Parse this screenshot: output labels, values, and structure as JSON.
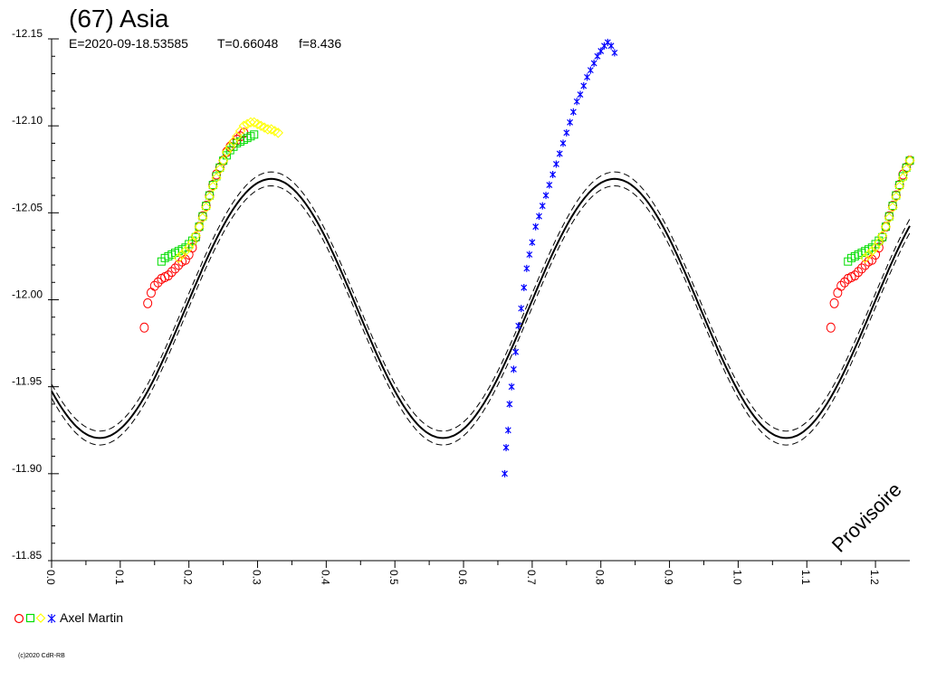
{
  "header": {
    "title": "(67) Asia",
    "epoch": "E=2020-09-18.53585",
    "period": "T=0.66048",
    "frequency": "f=8.436"
  },
  "watermark": "Provisoire",
  "legend": {
    "label": "Axel Martin",
    "markers": [
      "circle",
      "square",
      "diamond",
      "star"
    ]
  },
  "copyright": "(c)2020 CdR-RB",
  "colors": {
    "axis": "#000000",
    "curve": "#000000",
    "red": "#ff0000",
    "green": "#00dd00",
    "yellow": "#ffff00",
    "blue": "#0000ff"
  },
  "chart_data": {
    "type": "scatter",
    "x_ticks": [
      "0.0",
      "0.1",
      "0.2",
      "0.3",
      "0.4",
      "0.5",
      "0.6",
      "0.7",
      "0.8",
      "0.9",
      "1.0",
      "1.1",
      "1.2"
    ],
    "y_ticks": [
      "-12.15",
      "-12.10",
      "-12.05",
      "-12.00",
      "-11.95",
      "-11.90",
      "-11.85"
    ],
    "xlim": [
      0,
      1.25
    ],
    "ylim": [
      -12.15,
      -11.85
    ],
    "y_inverted": true,
    "grid": false,
    "model": {
      "type": "fourier",
      "mean": -11.995,
      "amplitude": 0.0745,
      "peak_phase": 0.32,
      "cycles_per_phase": 2,
      "band": 0.004
    },
    "series": [
      {
        "name": "Axel Martin",
        "marker": "circle",
        "color": "red",
        "x": [
          0.135,
          0.14,
          0.145,
          0.15,
          0.155,
          0.16,
          0.165,
          0.17,
          0.175,
          0.18,
          0.185,
          0.19,
          0.195,
          0.2,
          0.205,
          0.21,
          0.215,
          0.22,
          0.225,
          0.23,
          0.235,
          0.24,
          0.245,
          0.25,
          0.255,
          0.26,
          0.265,
          0.27,
          0.275,
          0.28
        ],
        "y": [
          -11.984,
          -11.998,
          -12.004,
          -12.008,
          -12.01,
          -12.012,
          -12.013,
          -12.014,
          -12.016,
          -12.018,
          -12.02,
          -12.022,
          -12.023,
          -12.026,
          -12.03,
          -12.036,
          -12.042,
          -12.048,
          -12.054,
          -12.06,
          -12.066,
          -12.072,
          -12.076,
          -12.08,
          -12.085,
          -12.088,
          -12.09,
          -12.092,
          -12.094,
          -12.096
        ]
      },
      {
        "name": "Axel Martin",
        "marker": "square",
        "color": "green",
        "x": [
          0.16,
          0.165,
          0.17,
          0.175,
          0.18,
          0.185,
          0.19,
          0.195,
          0.2,
          0.205,
          0.21,
          0.215,
          0.22,
          0.225,
          0.23,
          0.235,
          0.24,
          0.245,
          0.25,
          0.255,
          0.26,
          0.265,
          0.27,
          0.275,
          0.28,
          0.285,
          0.29,
          0.295
        ],
        "y": [
          -12.022,
          -12.024,
          -12.025,
          -12.026,
          -12.027,
          -12.028,
          -12.029,
          -12.03,
          -12.032,
          -12.034,
          -12.036,
          -12.042,
          -12.048,
          -12.054,
          -12.06,
          -12.066,
          -12.071,
          -12.076,
          -12.08,
          -12.083,
          -12.086,
          -12.088,
          -12.09,
          -12.091,
          -12.092,
          -12.093,
          -12.094,
          -12.095
        ]
      },
      {
        "name": "Axel Martin",
        "marker": "diamond",
        "color": "yellow",
        "x": [
          0.185,
          0.19,
          0.195,
          0.2,
          0.205,
          0.21,
          0.215,
          0.22,
          0.225,
          0.23,
          0.235,
          0.24,
          0.245,
          0.25,
          0.255,
          0.26,
          0.265,
          0.27,
          0.275,
          0.28,
          0.285,
          0.29,
          0.295,
          0.3,
          0.305,
          0.31,
          0.315,
          0.32,
          0.325,
          0.33
        ],
        "y": [
          -12.024,
          -12.026,
          -12.028,
          -12.03,
          -12.033,
          -12.037,
          -12.042,
          -12.047,
          -12.053,
          -12.059,
          -12.065,
          -12.07,
          -12.075,
          -12.08,
          -12.085,
          -12.088,
          -12.091,
          -12.094,
          -12.097,
          -12.1,
          -12.101,
          -12.102,
          -12.102,
          -12.101,
          -12.1,
          -12.099,
          -12.098,
          -12.098,
          -12.097,
          -12.096
        ]
      },
      {
        "name": "Axel Martin",
        "marker": "star",
        "color": "blue",
        "x": [
          0.66,
          0.662,
          0.665,
          0.667,
          0.67,
          0.673,
          0.676,
          0.68,
          0.684,
          0.688,
          0.692,
          0.696,
          0.7,
          0.705,
          0.71,
          0.715,
          0.72,
          0.725,
          0.73,
          0.735,
          0.74,
          0.745,
          0.75,
          0.755,
          0.76,
          0.765,
          0.77,
          0.775,
          0.78,
          0.785,
          0.79,
          0.795,
          0.8,
          0.805,
          0.81,
          0.815,
          0.82
        ],
        "y": [
          -11.9,
          -11.915,
          -11.925,
          -11.94,
          -11.95,
          -11.96,
          -11.97,
          -11.985,
          -11.995,
          -12.007,
          -12.018,
          -12.026,
          -12.033,
          -12.042,
          -12.048,
          -12.054,
          -12.06,
          -12.066,
          -12.072,
          -12.078,
          -12.084,
          -12.09,
          -12.096,
          -12.102,
          -12.108,
          -12.114,
          -12.118,
          -12.123,
          -12.128,
          -12.132,
          -12.136,
          -12.14,
          -12.143,
          -12.146,
          -12.148,
          -12.146,
          -12.142
        ]
      }
    ]
  }
}
